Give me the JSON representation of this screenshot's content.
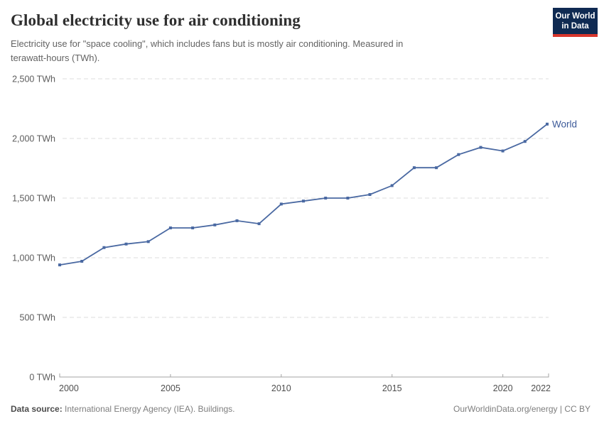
{
  "header": {
    "title": "Global electricity use for air conditioning",
    "subtitle": "Electricity use for \"space cooling\", which includes fans but is mostly air conditioning. Measured in\nterawatt-hours (TWh).",
    "logo": {
      "line1": "Our World",
      "line2": "in Data",
      "bg_color": "#0f2a52",
      "stripe_color": "#d8362c"
    }
  },
  "chart_data": {
    "type": "line",
    "title": "Global electricity use for air conditioning",
    "x": [
      2000,
      2001,
      2002,
      2003,
      2004,
      2005,
      2006,
      2007,
      2008,
      2009,
      2010,
      2011,
      2012,
      2013,
      2014,
      2015,
      2016,
      2017,
      2018,
      2019,
      2020,
      2021,
      2022
    ],
    "series": [
      {
        "name": "World",
        "color": "#4a69a2",
        "label_color": "#3d5a99",
        "values": [
          940,
          970,
          1085,
          1115,
          1135,
          1250,
          1250,
          1275,
          1310,
          1285,
          1450,
          1475,
          1500,
          1500,
          1530,
          1605,
          1755,
          1755,
          1865,
          1925,
          1895,
          1975,
          2120
        ]
      }
    ],
    "unit": "TWh",
    "ylim": [
      0,
      2500
    ],
    "xlim": [
      2000,
      2022
    ],
    "grid": "horizontal-dashed",
    "legend_position": "end-of-line",
    "yticks": [
      {
        "value": 2500,
        "label": "2,500 TWh"
      },
      {
        "value": 2000,
        "label": "2,000 TWh"
      },
      {
        "value": 1500,
        "label": "1,500 TWh"
      },
      {
        "value": 1000,
        "label": "1,000 TWh"
      },
      {
        "value": 500,
        "label": "500 TWh"
      },
      {
        "value": 0,
        "label": "0 TWh"
      }
    ],
    "xticks": [
      {
        "value": 2000,
        "label": "2000"
      },
      {
        "value": 2005,
        "label": "2005"
      },
      {
        "value": 2010,
        "label": "2010"
      },
      {
        "value": 2015,
        "label": "2015"
      },
      {
        "value": 2020,
        "label": "2020"
      },
      {
        "value": 2022,
        "label": "2022"
      }
    ]
  },
  "footer": {
    "source_label": "Data source:",
    "source_text": "International Energy Agency (IEA). Buildings.",
    "attribution": "OurWorldinData.org/energy | CC BY"
  }
}
